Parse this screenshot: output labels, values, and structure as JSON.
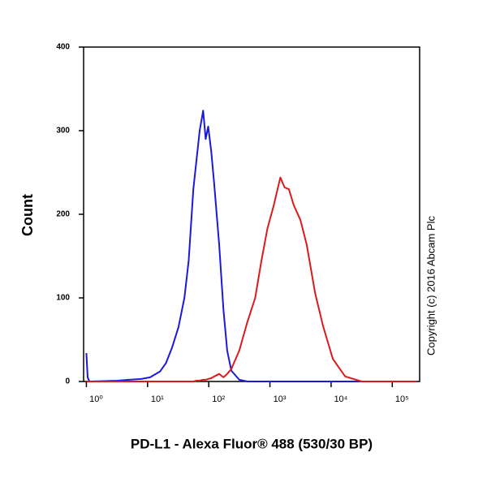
{
  "chart_data": {
    "type": "line",
    "x_label": "PD-L1 - Alexa Fluor® 488 (530/30 BP)",
    "y_label": "Count",
    "annotation": "Copyright (c) 2016 Abcam Plc",
    "x": [
      1,
      1.05,
      1.12,
      3.2,
      5,
      7.9,
      11,
      16,
      20,
      25,
      32,
      40,
      47,
      56,
      63,
      71,
      81,
      89,
      98,
      110,
      123,
      148,
      174,
      200,
      234,
      316,
      427,
      575,
      724,
      912,
      1150,
      1480,
      1740,
      2040,
      2450,
      3160,
      3980,
      5500,
      7410,
      10700,
      17000,
      31600,
      100000,
      251000
    ],
    "series": [
      {
        "color": "#1a1adc",
        "values": [
          34,
          5,
          0,
          1,
          2,
          3,
          5,
          12,
          22,
          40,
          65,
          100,
          145,
          230,
          265,
          300,
          324,
          290,
          305,
          275,
          235,
          164,
          86,
          37,
          13,
          2,
          0,
          0,
          0,
          0,
          0,
          0,
          0,
          0,
          0,
          0,
          0,
          0,
          0,
          0,
          0,
          0,
          0,
          0
        ]
      },
      {
        "color": "#dc1a1a",
        "values": [
          0,
          0,
          0,
          0,
          0,
          0,
          0,
          0,
          0,
          0,
          0,
          0,
          0,
          0,
          1,
          1,
          2,
          2,
          3,
          4,
          6,
          9,
          5,
          9,
          15,
          37,
          71,
          100,
          144,
          183,
          210,
          244,
          232,
          230,
          211,
          193,
          164,
          105,
          66,
          27,
          6,
          0,
          0,
          0
        ]
      }
    ],
    "log_x": true,
    "xlim": [
      0.9,
      280000
    ],
    "xticks": [
      {
        "value": 1,
        "label": "10⁰"
      },
      {
        "value": 10,
        "label": "10¹"
      },
      {
        "value": 100,
        "label": "10²"
      },
      {
        "value": 1000,
        "label": "10³"
      },
      {
        "value": 10000,
        "label": "10⁴"
      },
      {
        "value": 100000,
        "label": "10⁵"
      }
    ],
    "ylim": [
      0,
      400
    ],
    "yticks": [
      0,
      100,
      200,
      300,
      400
    ]
  }
}
